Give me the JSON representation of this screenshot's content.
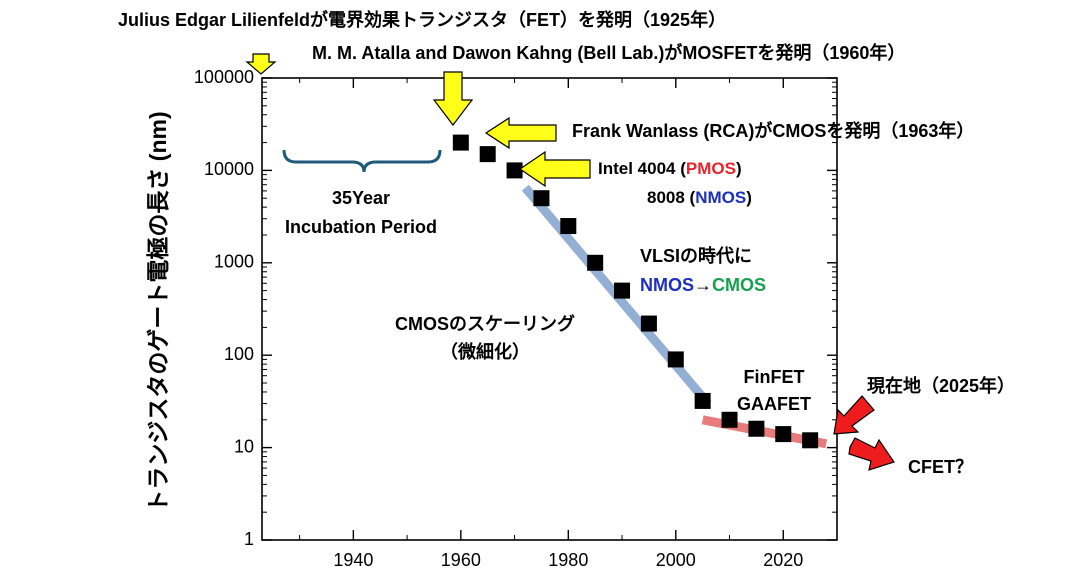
{
  "chart_data": {
    "type": "scatter",
    "ylabel": "トランジスタのゲート電極の長さ (nm)",
    "yscale": "log",
    "ylim": [
      1,
      100000
    ],
    "xlim": [
      1923,
      2030
    ],
    "y_ticks": [
      {
        "value": 100000,
        "label": "100000"
      },
      {
        "value": 10000,
        "label": "10000"
      },
      {
        "value": 1000,
        "label": "1000"
      },
      {
        "value": 100,
        "label": "100"
      },
      {
        "value": 10,
        "label": "10"
      },
      {
        "value": 1,
        "label": "1"
      }
    ],
    "x_ticks": [
      {
        "value": 1940,
        "label": "1940"
      },
      {
        "value": 1960,
        "label": "1960"
      },
      {
        "value": 1980,
        "label": "1980"
      },
      {
        "value": 2000,
        "label": "2000"
      },
      {
        "value": 2020,
        "label": "2020"
      }
    ],
    "points": [
      {
        "x": 1960,
        "y": 20000
      },
      {
        "x": 1965,
        "y": 15000
      },
      {
        "x": 1970,
        "y": 10000
      },
      {
        "x": 1975,
        "y": 5000
      },
      {
        "x": 1980,
        "y": 2500
      },
      {
        "x": 1985,
        "y": 1000
      },
      {
        "x": 1990,
        "y": 500
      },
      {
        "x": 1995,
        "y": 220
      },
      {
        "x": 2000,
        "y": 90
      },
      {
        "x": 2005,
        "y": 32
      },
      {
        "x": 2010,
        "y": 20
      },
      {
        "x": 2015,
        "y": 16
      },
      {
        "x": 2020,
        "y": 14
      },
      {
        "x": 2025,
        "y": 12
      }
    ],
    "trend_lines": [
      {
        "color": "#6f96c6",
        "points": [
          [
            1972,
            6500
          ],
          [
            2006,
            30
          ]
        ]
      },
      {
        "color": "#e05050",
        "points": [
          [
            2005,
            20
          ],
          [
            2028,
            11
          ]
        ]
      }
    ],
    "annotations": {
      "fet_1925": "Julius Edgar Lilienfeldが電界効果トランジスタ（FET）を発明（1925年）",
      "mosfet_1960": "M. M. Atalla and Dawon Kahng (Bell Lab.)がMOSFETを発明（1960年）",
      "cmos_1963": "Frank Wanlass (RCA)がCMOSを発明（1963年）",
      "intel_4004_prefix": "Intel 4004 (",
      "pmos": "PMOS",
      "suffix_paren": ")",
      "i8008_prefix": "8008 (",
      "nmos": "NMOS",
      "incubation_line1": "35Year",
      "incubation_line2": "Incubation Period",
      "vlsi_line1": "VLSIの時代に",
      "vlsi_nmos": "NMOS",
      "vlsi_arrow": "→",
      "vlsi_cmos": "CMOS",
      "scaling_line1": "CMOSのスケーリング",
      "scaling_line2": "（微細化）",
      "finfet": "FinFET",
      "gaafet": "GAAFET",
      "current": "現在地（2025年）",
      "cfet": "CFET？"
    },
    "colors": {
      "pmos": "#e8232a",
      "nmos": "#1c2fc0",
      "cmos": "#18a050",
      "arrow_yellow": "#ffff1a",
      "arrow_red": "#ee1c1c",
      "brace": "#1f5a7a"
    }
  }
}
